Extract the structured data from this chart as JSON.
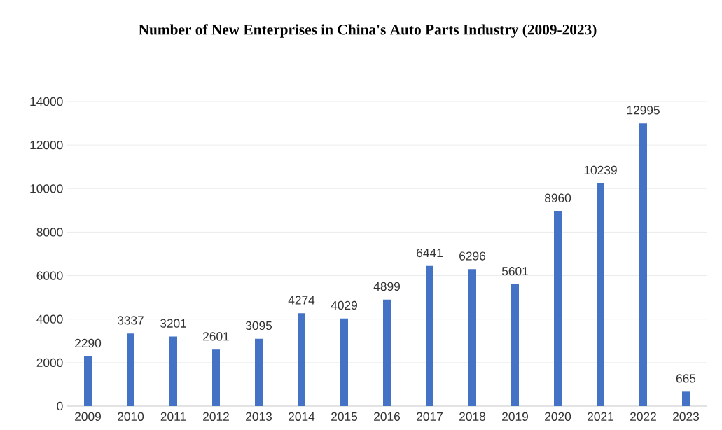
{
  "chart_data": {
    "type": "bar",
    "title": "Number of New Enterprises in China's Auto Parts Industry (2009-2023)",
    "categories": [
      "2009",
      "2010",
      "2011",
      "2012",
      "2013",
      "2014",
      "2015",
      "2016",
      "2017",
      "2018",
      "2019",
      "2020",
      "2021",
      "2022",
      "2023"
    ],
    "values": [
      2290,
      3337,
      3201,
      2601,
      3095,
      4274,
      4029,
      4899,
      6441,
      6296,
      5601,
      8960,
      10239,
      12995,
      665
    ],
    "color": "#4472c4",
    "ylim": [
      0,
      14000
    ],
    "yticks": [
      0,
      2000,
      4000,
      6000,
      8000,
      10000,
      12000,
      14000
    ],
    "grid": "y",
    "data_labels": true
  }
}
